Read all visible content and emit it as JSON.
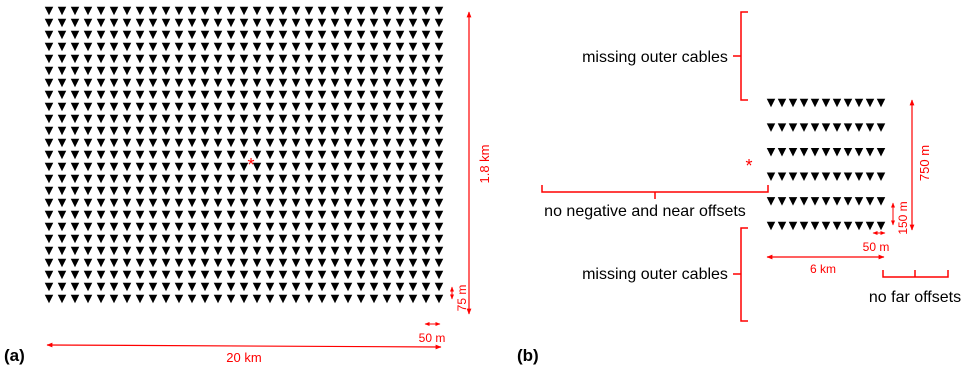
{
  "colors": {
    "accent": "#ff0000",
    "receiver": "#000000"
  },
  "panel_a": {
    "label": "(a)",
    "width_label": "20 km",
    "height_label": "1.8 km",
    "row_spacing_label": "75 m",
    "col_spacing_label": "50 m",
    "grid_rows": 25,
    "grid_cols": 31,
    "source_marker": "*"
  },
  "panel_b": {
    "label": "(b)",
    "missing_top_label": "missing outer cables",
    "missing_bottom_label": "missing outer cables",
    "no_near_label": "no negative and near offsets",
    "no_far_label": "no far offsets",
    "cable_length_label": "6 km",
    "spread_label": "750 m",
    "cable_spacing_label": "150 m",
    "receiver_spacing_label": "50 m",
    "cables": 6,
    "receivers_per_cable": 11,
    "source_marker": "*"
  }
}
